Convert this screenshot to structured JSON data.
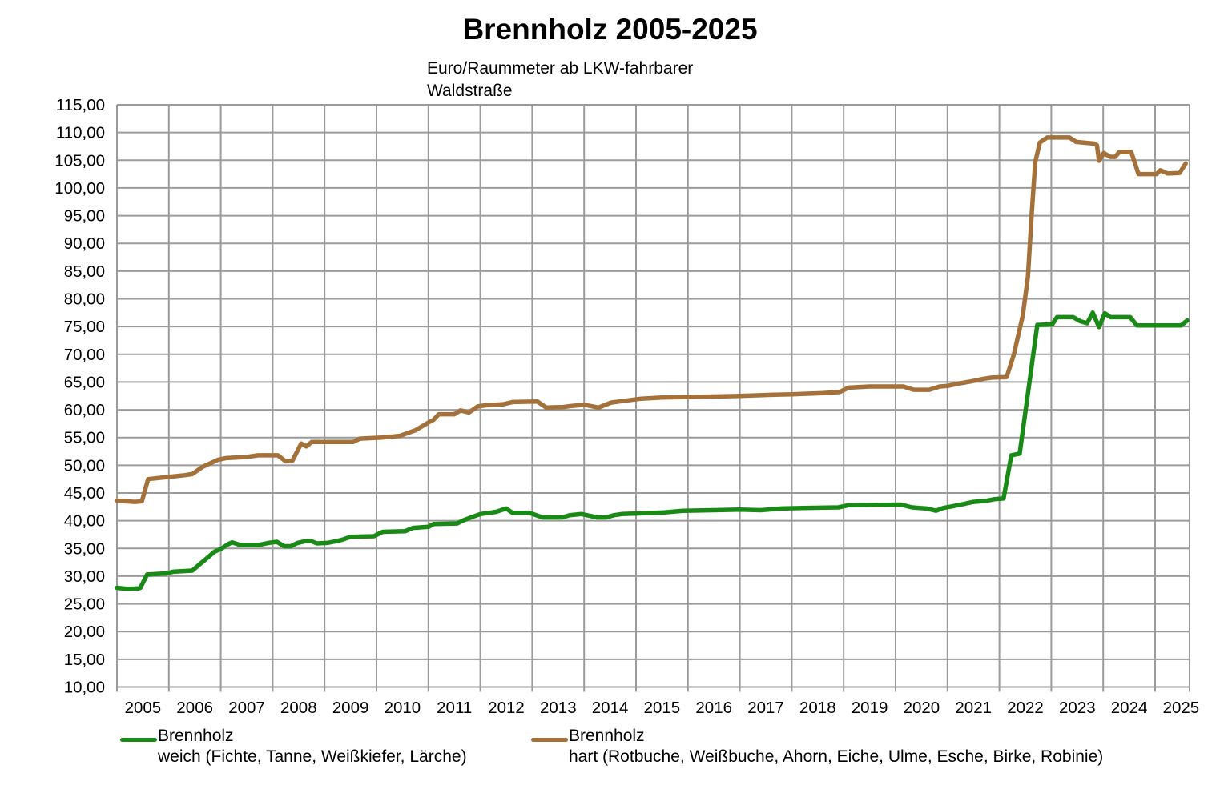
{
  "header": {
    "title": "Brennholz 2005-2025",
    "subtitle_line1": "Euro/Raummeter ab LKW-fahrbarer",
    "subtitle_line2": "Waldstraße"
  },
  "colors": {
    "weich_green": "#1A8A17",
    "hart_brown": "#A5713B",
    "grid_gray": "#9B9B9B",
    "text_black": "#000000",
    "background": "#FFFFFF"
  },
  "chart_data": {
    "type": "line",
    "title": "Brennholz 2005-2025",
    "subtitle": "Euro/Raummeter ab LKW-fahrbarer Waldstraße",
    "grid": true,
    "legend_position": "bottom",
    "x_axis": {
      "ticks": [
        2005,
        2006,
        2007,
        2008,
        2009,
        2010,
        2011,
        2012,
        2013,
        2014,
        2015,
        2016,
        2017,
        2018,
        2019,
        2020,
        2021,
        2022,
        2023,
        2024,
        2025
      ],
      "range": [
        2005,
        2025.7
      ]
    },
    "y_axis": {
      "min": 10,
      "max": 115,
      "step": 5,
      "tick_format": "de-comma",
      "tick_labels": [
        "10,00",
        "15,00",
        "20,00",
        "25,00",
        "30,00",
        "35,00",
        "40,00",
        "45,00",
        "50,00",
        "55,00",
        "60,00",
        "65,00",
        "70,00",
        "75,00",
        "80,00",
        "85,00",
        "90,00",
        "95,00",
        "100,00",
        "105,00",
        "110,00",
        "115,00"
      ]
    },
    "series": [
      {
        "name": "Brennholz",
        "description": "weich (Fichte, Tanne, Weißkiefer, Lärche)",
        "color": "#1A8A17",
        "points": [
          [
            2005.0,
            27.9
          ],
          [
            2005.2,
            27.7
          ],
          [
            2005.42,
            27.8
          ],
          [
            2005.45,
            27.9
          ],
          [
            2005.58,
            30.3
          ],
          [
            2005.95,
            30.5
          ],
          [
            2006.08,
            30.8
          ],
          [
            2006.45,
            31.0
          ],
          [
            2006.88,
            34.4
          ],
          [
            2007.0,
            34.9
          ],
          [
            2007.15,
            35.8
          ],
          [
            2007.22,
            36.1
          ],
          [
            2007.38,
            35.6
          ],
          [
            2007.72,
            35.6
          ],
          [
            2007.92,
            36.0
          ],
          [
            2008.08,
            36.2
          ],
          [
            2008.22,
            35.4
          ],
          [
            2008.35,
            35.4
          ],
          [
            2008.48,
            36.0
          ],
          [
            2008.62,
            36.3
          ],
          [
            2008.72,
            36.4
          ],
          [
            2008.85,
            35.9
          ],
          [
            2009.05,
            36.0
          ],
          [
            2009.22,
            36.3
          ],
          [
            2009.35,
            36.6
          ],
          [
            2009.5,
            37.1
          ],
          [
            2009.95,
            37.2
          ],
          [
            2010.12,
            38.0
          ],
          [
            2010.55,
            38.1
          ],
          [
            2010.7,
            38.7
          ],
          [
            2011.0,
            38.9
          ],
          [
            2011.1,
            39.4
          ],
          [
            2011.55,
            39.5
          ],
          [
            2011.68,
            40.1
          ],
          [
            2011.85,
            40.7
          ],
          [
            2012.0,
            41.2
          ],
          [
            2012.3,
            41.6
          ],
          [
            2012.5,
            42.2
          ],
          [
            2012.62,
            41.4
          ],
          [
            2012.95,
            41.4
          ],
          [
            2013.2,
            40.6
          ],
          [
            2013.58,
            40.6
          ],
          [
            2013.72,
            41.0
          ],
          [
            2013.95,
            41.2
          ],
          [
            2014.25,
            40.6
          ],
          [
            2014.42,
            40.6
          ],
          [
            2014.58,
            41.0
          ],
          [
            2014.72,
            41.2
          ],
          [
            2015.0,
            41.3
          ],
          [
            2015.55,
            41.5
          ],
          [
            2015.9,
            41.8
          ],
          [
            2016.5,
            41.9
          ],
          [
            2017.0,
            42.0
          ],
          [
            2017.4,
            41.9
          ],
          [
            2017.8,
            42.2
          ],
          [
            2018.2,
            42.3
          ],
          [
            2018.9,
            42.4
          ],
          [
            2019.1,
            42.8
          ],
          [
            2020.1,
            42.9
          ],
          [
            2020.32,
            42.4
          ],
          [
            2020.6,
            42.2
          ],
          [
            2020.78,
            41.8
          ],
          [
            2020.92,
            42.3
          ],
          [
            2021.1,
            42.6
          ],
          [
            2021.3,
            43.0
          ],
          [
            2021.5,
            43.4
          ],
          [
            2021.75,
            43.6
          ],
          [
            2021.92,
            43.9
          ],
          [
            2022.08,
            44.0
          ],
          [
            2022.23,
            51.8
          ],
          [
            2022.39,
            52.1
          ],
          [
            2022.73,
            75.3
          ],
          [
            2023.02,
            75.4
          ],
          [
            2023.11,
            76.7
          ],
          [
            2023.42,
            76.7
          ],
          [
            2023.55,
            76.0
          ],
          [
            2023.69,
            75.6
          ],
          [
            2023.8,
            77.5
          ],
          [
            2023.92,
            74.9
          ],
          [
            2024.03,
            77.4
          ],
          [
            2024.14,
            76.7
          ],
          [
            2024.52,
            76.7
          ],
          [
            2024.65,
            75.2
          ],
          [
            2025.5,
            75.2
          ],
          [
            2025.62,
            76.1
          ]
        ]
      },
      {
        "name": "Brennholz",
        "description": "hart (Rotbuche, Weißbuche, Ahorn, Eiche, Ulme, Esche, Birke, Robinie)",
        "color": "#A5713B",
        "points": [
          [
            2005.0,
            43.6
          ],
          [
            2005.35,
            43.4
          ],
          [
            2005.48,
            43.5
          ],
          [
            2005.6,
            47.5
          ],
          [
            2006.0,
            47.9
          ],
          [
            2006.3,
            48.2
          ],
          [
            2006.45,
            48.4
          ],
          [
            2006.65,
            49.7
          ],
          [
            2006.95,
            51.0
          ],
          [
            2007.1,
            51.3
          ],
          [
            2007.5,
            51.5
          ],
          [
            2007.72,
            51.8
          ],
          [
            2008.1,
            51.8
          ],
          [
            2008.25,
            50.7
          ],
          [
            2008.38,
            50.8
          ],
          [
            2008.55,
            53.9
          ],
          [
            2008.65,
            53.4
          ],
          [
            2008.75,
            54.2
          ],
          [
            2009.55,
            54.2
          ],
          [
            2009.68,
            54.8
          ],
          [
            2010.1,
            55.0
          ],
          [
            2010.45,
            55.3
          ],
          [
            2010.75,
            56.3
          ],
          [
            2011.0,
            57.7
          ],
          [
            2011.1,
            58.2
          ],
          [
            2011.2,
            59.2
          ],
          [
            2011.5,
            59.2
          ],
          [
            2011.62,
            59.9
          ],
          [
            2011.78,
            59.5
          ],
          [
            2011.95,
            60.6
          ],
          [
            2012.1,
            60.8
          ],
          [
            2012.45,
            61.0
          ],
          [
            2012.62,
            61.4
          ],
          [
            2013.1,
            61.5
          ],
          [
            2013.27,
            60.4
          ],
          [
            2013.6,
            60.5
          ],
          [
            2013.77,
            60.7
          ],
          [
            2014.0,
            60.9
          ],
          [
            2014.28,
            60.4
          ],
          [
            2014.52,
            61.3
          ],
          [
            2014.68,
            61.5
          ],
          [
            2015.1,
            62.0
          ],
          [
            2015.5,
            62.2
          ],
          [
            2016.0,
            62.3
          ],
          [
            2016.6,
            62.4
          ],
          [
            2017.0,
            62.5
          ],
          [
            2017.6,
            62.7
          ],
          [
            2018.0,
            62.8
          ],
          [
            2018.6,
            63.0
          ],
          [
            2018.92,
            63.2
          ],
          [
            2019.1,
            64.0
          ],
          [
            2019.5,
            64.2
          ],
          [
            2020.15,
            64.2
          ],
          [
            2020.35,
            63.6
          ],
          [
            2020.65,
            63.6
          ],
          [
            2020.85,
            64.2
          ],
          [
            2021.0,
            64.3
          ],
          [
            2021.2,
            64.7
          ],
          [
            2021.45,
            65.1
          ],
          [
            2021.7,
            65.6
          ],
          [
            2021.85,
            65.8
          ],
          [
            2022.14,
            65.9
          ],
          [
            2022.28,
            70.0
          ],
          [
            2022.45,
            77.0
          ],
          [
            2022.55,
            84.0
          ],
          [
            2022.62,
            95.0
          ],
          [
            2022.69,
            104.6
          ],
          [
            2022.78,
            108.2
          ],
          [
            2022.92,
            109.1
          ],
          [
            2023.35,
            109.1
          ],
          [
            2023.48,
            108.3
          ],
          [
            2023.83,
            108.0
          ],
          [
            2023.88,
            107.7
          ],
          [
            2023.92,
            104.9
          ],
          [
            2024.01,
            106.3
          ],
          [
            2024.14,
            105.6
          ],
          [
            2024.23,
            105.6
          ],
          [
            2024.31,
            106.5
          ],
          [
            2024.54,
            106.5
          ],
          [
            2024.68,
            102.5
          ],
          [
            2025.03,
            102.5
          ],
          [
            2025.1,
            103.2
          ],
          [
            2025.24,
            102.6
          ],
          [
            2025.47,
            102.7
          ],
          [
            2025.59,
            104.4
          ]
        ]
      }
    ]
  }
}
